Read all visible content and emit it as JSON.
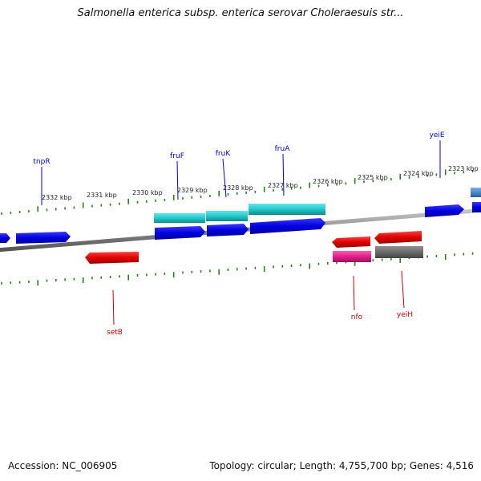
{
  "title": "Salmonella enterica subsp. enterica serovar Choleraesuis str...",
  "footer": {
    "accession": "Accession: NC_006905",
    "stats": "Topology: circular; Length: 4,755,700 bp; Genes: 4,516"
  },
  "kbp_ticks": [
    "2332 kbp",
    "2331 kbp",
    "2330 kbp",
    "2329 kbp",
    "2328 kbp",
    "2327 kbp",
    "2326 kbp",
    "2325 kbp",
    "2324 kbp",
    "2323 kbp"
  ],
  "genes_forward": [
    {
      "name": "tnpR",
      "color": "#0000ee"
    },
    {
      "name": "fruF",
      "color": "#0000ee"
    },
    {
      "name": "fruK",
      "color": "#0000ee"
    },
    {
      "name": "fruA",
      "color": "#0000ee"
    },
    {
      "name": "yeiE",
      "color": "#0000ee"
    }
  ],
  "genes_reverse": [
    {
      "name": "setB",
      "color": "#dd0000"
    },
    {
      "name": "nfo",
      "color": "#dd0000"
    },
    {
      "name": "yeiH",
      "color": "#dd0000"
    }
  ],
  "colors": {
    "backbone": "#8a8a8a",
    "tick": "#2e7d1e",
    "forward_gene": "#1010e0",
    "reverse_gene": "#e00000",
    "cds_highlight": "#22c8cc",
    "magenta_gene": "#e0208a",
    "grey_gene": "#6a6a6a",
    "steelblue_gene": "#4a8ac8"
  }
}
